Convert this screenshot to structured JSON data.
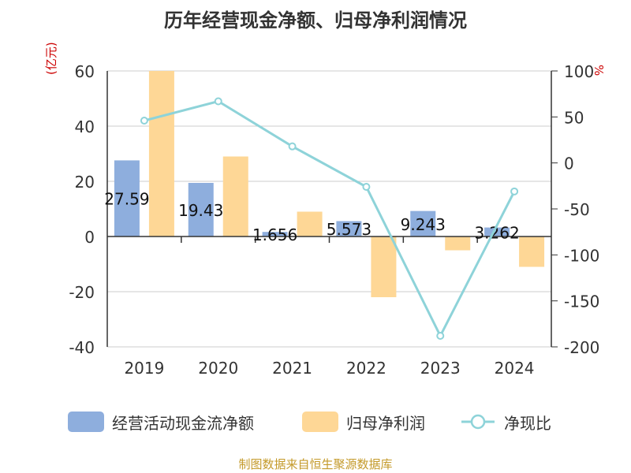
{
  "title": "历年经营现金净额、归母净利润情况",
  "source": "制图数据来自恒生聚源数据库",
  "left_unit": "(亿元)",
  "right_unit": "%",
  "legend": [
    {
      "label": "经营活动现金流净额",
      "color": "#8eaedd"
    },
    {
      "label": "归母净利润",
      "color": "#fed796"
    },
    {
      "label": "净现比",
      "color": "#8ed3d9"
    }
  ],
  "chart_data": {
    "type": "bar",
    "title": "历年经营现金净额、归母净利润情况",
    "categories": [
      "2019",
      "2020",
      "2021",
      "2022",
      "2023",
      "2024"
    ],
    "left_axis": {
      "unit": "(亿元)",
      "ylim": [
        -40,
        60
      ],
      "ticks": [
        "60",
        "40",
        "20",
        "0",
        "-20",
        "-40"
      ]
    },
    "right_axis": {
      "unit": "%",
      "ylim": [
        -200,
        100
      ],
      "ticks": [
        "100",
        "50",
        "0",
        "-50",
        "-100",
        "-150",
        "-200"
      ]
    },
    "series": [
      {
        "name": "经营活动现金流净额",
        "type": "bar",
        "axis": "left",
        "color": "#8eaedd",
        "values": [
          27.59,
          19.43,
          1.656,
          5.573,
          9.243,
          3.262
        ],
        "labels": [
          "27.59",
          "19.43",
          "1.656",
          "5.573",
          "9.243",
          "3.262"
        ]
      },
      {
        "name": "归母净利润",
        "type": "bar",
        "axis": "left",
        "color": "#fed796",
        "values": [
          60,
          29,
          9,
          -22,
          -5,
          -11
        ]
      },
      {
        "name": "净现比",
        "type": "line",
        "axis": "right",
        "color": "#8ed3d9",
        "values": [
          46,
          67,
          18,
          -26,
          -188,
          -31
        ]
      }
    ],
    "grid": true,
    "legend_position": "bottom"
  }
}
